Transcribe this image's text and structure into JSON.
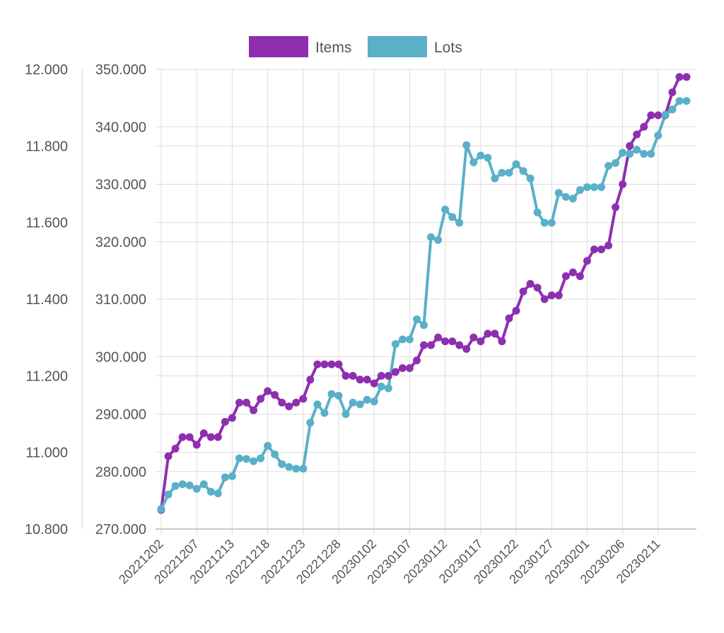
{
  "chart_data": {
    "type": "line",
    "title": "",
    "xlabel": "",
    "grid": true,
    "legend": "top-center",
    "colors": {
      "Items": "#8e2fb0",
      "Lots": "#5ab0c8"
    },
    "x_tick_labels": [
      "20221202",
      "20221207",
      "20221213",
      "20221218",
      "20221223",
      "20221228",
      "20230102",
      "20230107",
      "20230112",
      "20230117",
      "20230122",
      "20230127",
      "20230201",
      "20230206",
      "20230211"
    ],
    "left_axis": {
      "ylim": [
        10.8,
        12.0
      ],
      "ticks": [
        "10.800",
        "11.000",
        "11.200",
        "11.400",
        "11.600",
        "11.800",
        "12.000"
      ]
    },
    "right_axis": {
      "ylim": [
        270,
        350
      ],
      "ticks": [
        "270.000",
        "280.000",
        "290.000",
        "300.000",
        "310.000",
        "320.000",
        "330.000",
        "340.000",
        "350.000"
      ]
    },
    "series": [
      {
        "name": "Items",
        "axis": "left",
        "values": [
          10.85,
          10.99,
          11.01,
          11.04,
          11.04,
          11.02,
          11.05,
          11.04,
          11.04,
          11.08,
          11.09,
          11.13,
          11.13,
          11.11,
          11.14,
          11.16,
          11.15,
          11.13,
          11.12,
          11.13,
          11.14,
          11.19,
          11.23,
          11.23,
          11.23,
          11.23,
          11.2,
          11.2,
          11.19,
          11.19,
          11.18,
          11.2,
          11.2,
          11.21,
          11.22,
          11.22,
          11.24,
          11.28,
          11.28,
          11.3,
          11.29,
          11.29,
          11.28,
          11.27,
          11.3,
          11.29,
          11.31,
          11.31,
          11.29,
          11.35,
          11.37,
          11.42,
          11.44,
          11.43,
          11.4,
          11.41,
          11.41,
          11.46,
          11.47,
          11.46,
          11.5,
          11.53,
          11.53,
          11.54,
          11.64,
          11.7,
          11.8,
          11.83,
          11.85,
          11.88,
          11.88,
          11.88,
          11.94,
          11.98,
          11.98
        ]
      },
      {
        "name": "Lots",
        "axis": "right",
        "values": [
          273.5,
          276,
          277.5,
          277.8,
          277.6,
          277,
          277.8,
          276.5,
          276.2,
          279,
          279.2,
          282.3,
          282.2,
          281.8,
          282.3,
          284.5,
          283,
          281.3,
          280.8,
          280.5,
          280.5,
          288.5,
          291.7,
          290.2,
          293.5,
          293.2,
          290,
          292,
          291.7,
          292.5,
          292.2,
          294.8,
          294.5,
          302.2,
          303,
          303,
          306.5,
          305.5,
          320.8,
          320.3,
          325.6,
          324.3,
          323.3,
          336.8,
          333.8,
          335,
          334.6,
          331,
          332,
          332,
          333.5,
          332.3,
          331,
          325.1,
          323.3,
          323.3,
          328.5,
          327.8,
          327.5,
          329,
          329.5,
          329.5,
          329.5,
          333.2,
          333.7,
          335.5,
          335.3,
          336,
          335.3,
          335.3,
          338.5,
          342.1,
          343,
          344.5,
          344.5
        ]
      }
    ]
  }
}
